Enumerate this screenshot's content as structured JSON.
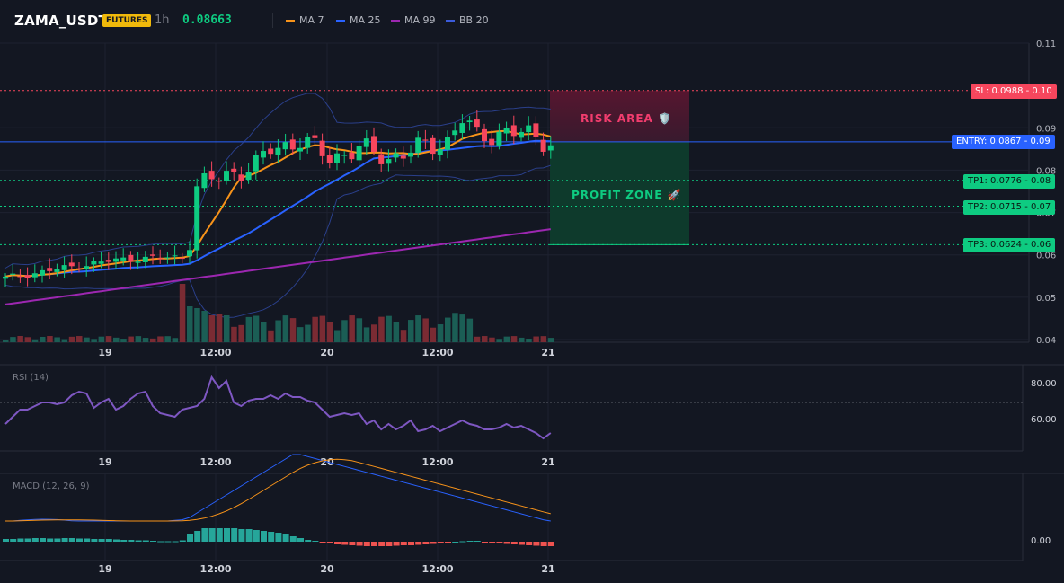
{
  "header": {
    "symbol": "ZAMA_USDT",
    "badge": "FUTURES",
    "timeframe": "1h",
    "last_price": "0.08663",
    "indicators": [
      {
        "label": "MA 7",
        "color": "#f7931a"
      },
      {
        "label": "MA 25",
        "color": "#2962ff"
      },
      {
        "label": "MA 99",
        "color": "#9c27b0"
      },
      {
        "label": "BB 20",
        "color": "#1e3a8a"
      }
    ]
  },
  "colors": {
    "up": "#0ecb81",
    "down": "#f6465d",
    "vol_up": "#1b5e55",
    "vol_down": "#7a2b33",
    "bg": "#131722"
  },
  "levels": {
    "sl": {
      "label": "SL: 0.0988 - 0.10",
      "value": 0.0988
    },
    "entry": {
      "label": "ENTRY: 0.0867 - 0.09",
      "value": 0.0867
    },
    "tp1": {
      "label": "TP1: 0.0776 - 0.08",
      "value": 0.0776
    },
    "tp2": {
      "label": "TP2: 0.0715 - 0.07",
      "value": 0.0715
    },
    "tp3": {
      "label": "TP3: 0.0624 - 0.06",
      "value": 0.0624
    }
  },
  "zones": {
    "risk": "RISK AREA 🛡️",
    "profit": "PROFIT ZONE 🚀"
  },
  "price_axis": [
    "0.11",
    "0.09",
    "0.08",
    "0.07",
    "0.06",
    "0.05",
    "0.04"
  ],
  "time_axis": [
    "19",
    "12:00",
    "20",
    "12:00",
    "21"
  ],
  "rsi": {
    "title": "RSI (14)",
    "levels": [
      "80.00",
      "60.00"
    ],
    "values": [
      58,
      62,
      66,
      66,
      68,
      70,
      70,
      69,
      70,
      74,
      76,
      75,
      67,
      70,
      72,
      66,
      68,
      72,
      75,
      76,
      68,
      64,
      63,
      62,
      66,
      67,
      68,
      72,
      84,
      78,
      82,
      70,
      68,
      71,
      72,
      72,
      74,
      72,
      75,
      73,
      73,
      71,
      70,
      66,
      62,
      63,
      64,
      63,
      64,
      58,
      60,
      55,
      58,
      55,
      57,
      60,
      54,
      55,
      57,
      54,
      56,
      58,
      60,
      58,
      57,
      55,
      55,
      56,
      58,
      56,
      57,
      55,
      53,
      50,
      53
    ]
  },
  "macd": {
    "title": "MACD (12, 26, 9)",
    "zero_label": "0.00",
    "hist": [
      0.3,
      0.3,
      0.35,
      0.35,
      0.4,
      0.4,
      0.35,
      0.35,
      0.4,
      0.4,
      0.35,
      0.35,
      0.3,
      0.3,
      0.3,
      0.25,
      0.2,
      0.2,
      0.15,
      0.15,
      0.1,
      0.05,
      0.05,
      0.05,
      0.15,
      0.9,
      1.2,
      1.5,
      1.5,
      1.5,
      1.5,
      1.5,
      1.4,
      1.4,
      1.3,
      1.2,
      1.1,
      1.0,
      0.8,
      0.6,
      0.4,
      0.2,
      0.1,
      -0.1,
      -0.2,
      -0.3,
      -0.35,
      -0.4,
      -0.45,
      -0.5,
      -0.5,
      -0.5,
      -0.5,
      -0.45,
      -0.4,
      -0.4,
      -0.35,
      -0.3,
      -0.25,
      -0.2,
      -0.1,
      0.0,
      0.05,
      0.1,
      0.1,
      -0.1,
      -0.15,
      -0.2,
      -0.25,
      -0.3,
      -0.35,
      -0.4,
      -0.45,
      -0.5,
      -0.5
    ]
  }
}
